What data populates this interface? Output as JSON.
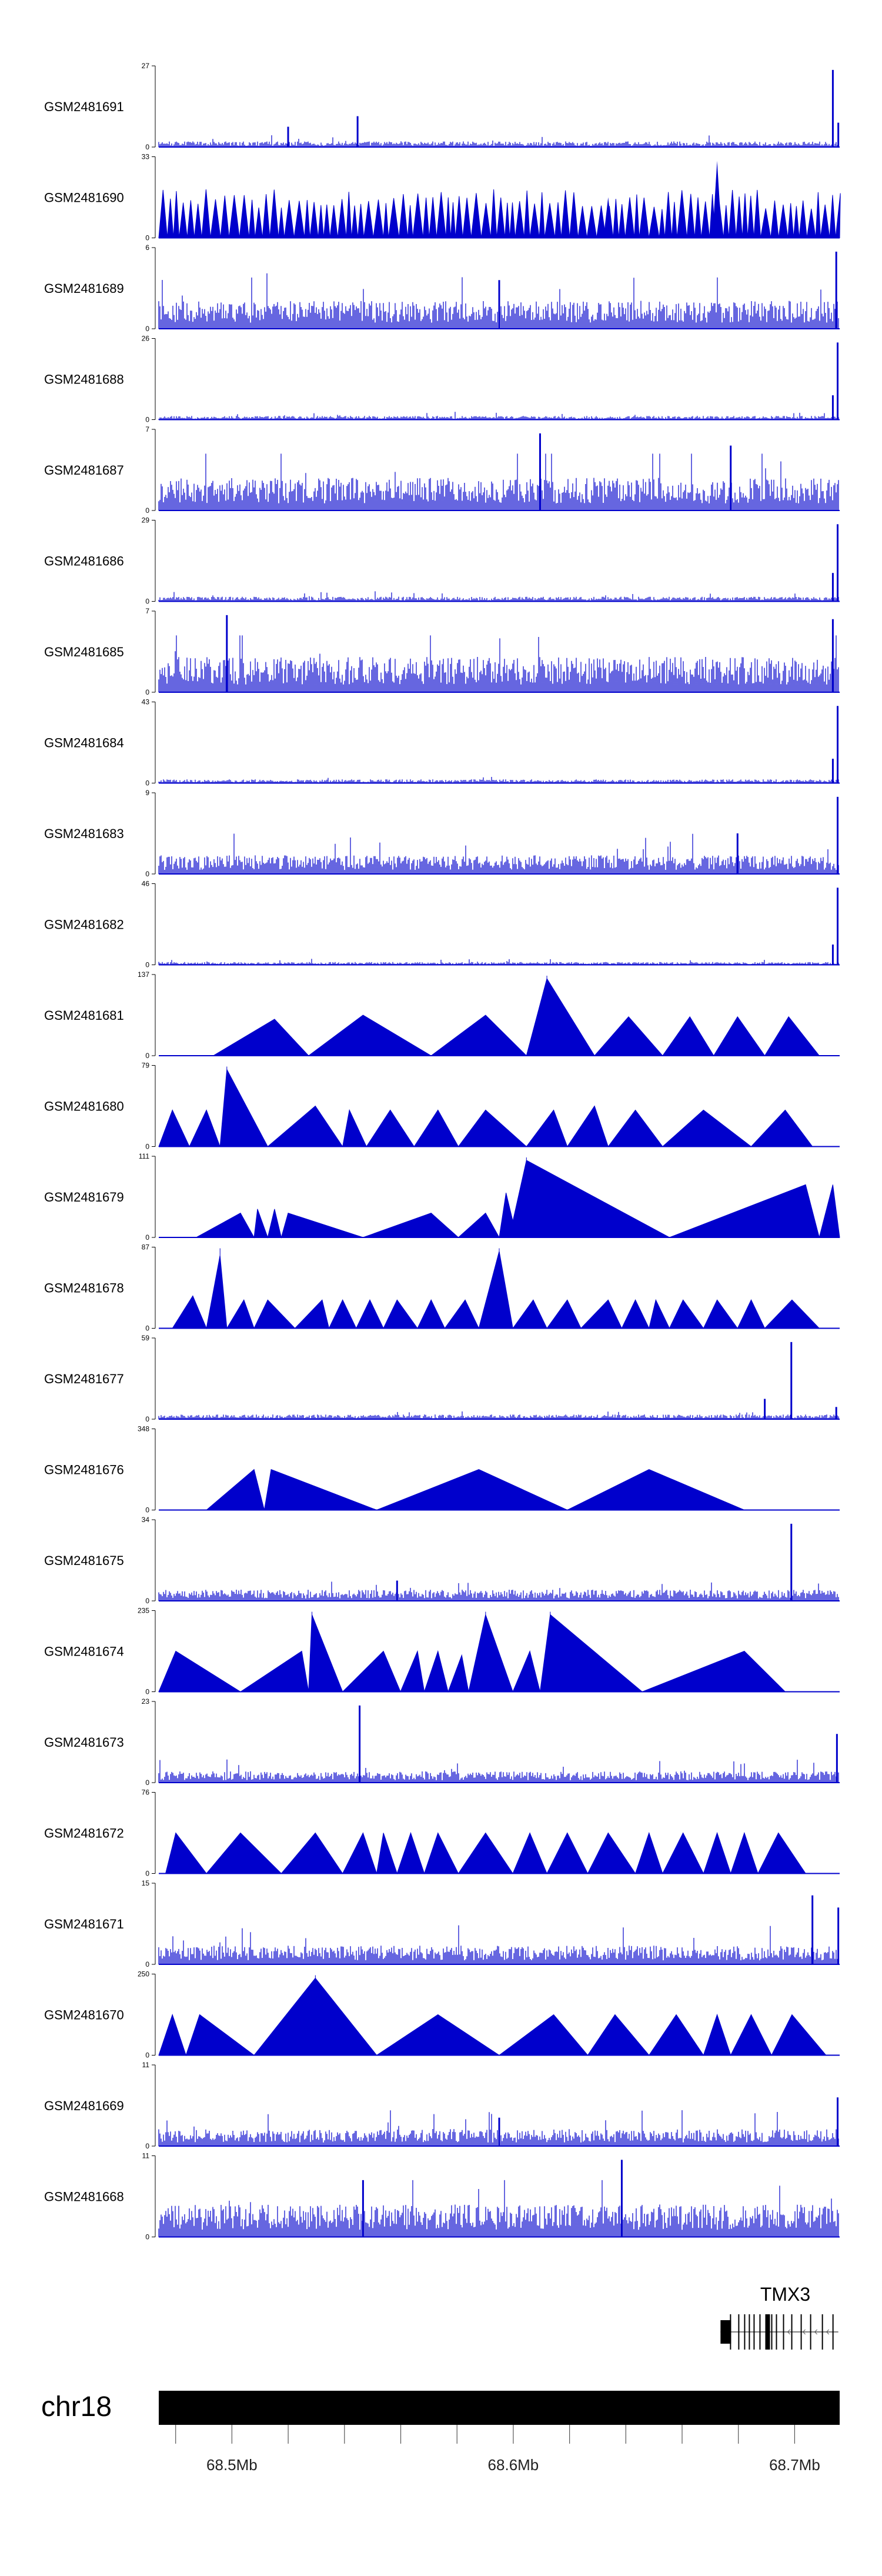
{
  "chart_data": {
    "type": "area",
    "data_color": "#0000cc",
    "x_range_mb": [
      68.474,
      68.716
    ],
    "tracks": [
      {
        "name": "GSM2481691",
        "ymax": "27",
        "ymin": "0",
        "style": "noise",
        "base": 0.06,
        "spikes": [
          [
            0.292,
            0.38
          ],
          [
            0.19,
            0.25
          ],
          [
            0.99,
            0.95
          ],
          [
            0.998,
            0.3
          ]
        ]
      },
      {
        "name": "GSM2481690",
        "ymax": "33",
        "ymin": "0",
        "style": "teeth",
        "base": 0.35,
        "spikes": [
          [
            0.82,
            0.95
          ],
          [
            0.66,
            0.5
          ]
        ]
      },
      {
        "name": "GSM2481689",
        "ymax": "6",
        "ymin": "0",
        "style": "noise",
        "base": 0.3,
        "spikes": [
          [
            0.995,
            0.95
          ],
          [
            0.5,
            0.6
          ]
        ]
      },
      {
        "name": "GSM2481688",
        "ymax": "26",
        "ymin": "0",
        "style": "noise",
        "base": 0.04,
        "spikes": [
          [
            0.997,
            0.95
          ],
          [
            0.99,
            0.3
          ]
        ]
      },
      {
        "name": "GSM2481687",
        "ymax": "7",
        "ymin": "0",
        "style": "noise",
        "base": 0.35,
        "spikes": [
          [
            0.56,
            0.95
          ],
          [
            0.84,
            0.8
          ]
        ]
      },
      {
        "name": "GSM2481686",
        "ymax": "29",
        "ymin": "0",
        "style": "noise",
        "base": 0.05,
        "spikes": [
          [
            0.997,
            0.95
          ],
          [
            0.99,
            0.35
          ]
        ]
      },
      {
        "name": "GSM2481685",
        "ymax": "7",
        "ymin": "0",
        "style": "noise",
        "base": 0.38,
        "spikes": [
          [
            0.1,
            0.95
          ],
          [
            0.99,
            0.9
          ]
        ]
      },
      {
        "name": "GSM2481684",
        "ymax": "43",
        "ymin": "0",
        "style": "noise",
        "base": 0.04,
        "spikes": [
          [
            0.997,
            0.95
          ],
          [
            0.99,
            0.3
          ]
        ]
      },
      {
        "name": "GSM2481683",
        "ymax": "9",
        "ymin": "0",
        "style": "noise",
        "base": 0.2,
        "spikes": [
          [
            0.997,
            0.95
          ],
          [
            0.85,
            0.5
          ]
        ]
      },
      {
        "name": "GSM2481682",
        "ymax": "46",
        "ymin": "0",
        "style": "noise",
        "base": 0.03,
        "spikes": [
          [
            0.997,
            0.95
          ],
          [
            0.99,
            0.25
          ]
        ]
      },
      {
        "name": "GSM2481681",
        "ymax": "137",
        "ymin": "0",
        "style": "triangles",
        "points": [
          [
            0.08,
            0
          ],
          [
            0.17,
            0.45
          ],
          [
            0.22,
            0
          ],
          [
            0.3,
            0.5
          ],
          [
            0.4,
            0
          ],
          [
            0.48,
            0.5
          ],
          [
            0.54,
            0
          ],
          [
            0.57,
            0.95
          ],
          [
            0.64,
            0
          ],
          [
            0.69,
            0.48
          ],
          [
            0.74,
            0
          ],
          [
            0.78,
            0.48
          ],
          [
            0.815,
            0
          ],
          [
            0.85,
            0.48
          ],
          [
            0.89,
            0
          ],
          [
            0.925,
            0.48
          ],
          [
            0.97,
            0
          ]
        ]
      },
      {
        "name": "GSM2481680",
        "ymax": "79",
        "ymin": "0",
        "style": "triangles",
        "points": [
          [
            0.0,
            0
          ],
          [
            0.02,
            0.45
          ],
          [
            0.045,
            0
          ],
          [
            0.07,
            0.45
          ],
          [
            0.09,
            0
          ],
          [
            0.1,
            0.95
          ],
          [
            0.16,
            0
          ],
          [
            0.23,
            0.5
          ],
          [
            0.27,
            0
          ],
          [
            0.28,
            0.45
          ],
          [
            0.305,
            0
          ],
          [
            0.34,
            0.45
          ],
          [
            0.375,
            0
          ],
          [
            0.41,
            0.45
          ],
          [
            0.44,
            0
          ],
          [
            0.48,
            0.45
          ],
          [
            0.54,
            0
          ],
          [
            0.58,
            0.45
          ],
          [
            0.6,
            0
          ],
          [
            0.64,
            0.5
          ],
          [
            0.66,
            0
          ],
          [
            0.7,
            0.45
          ],
          [
            0.74,
            0
          ],
          [
            0.8,
            0.45
          ],
          [
            0.87,
            0
          ],
          [
            0.92,
            0.45
          ],
          [
            0.96,
            0
          ]
        ]
      },
      {
        "name": "GSM2481679",
        "ymax": "111",
        "ymin": "0",
        "style": "triangles",
        "points": [
          [
            0.055,
            0
          ],
          [
            0.12,
            0.3
          ],
          [
            0.14,
            0
          ],
          [
            0.145,
            0.35
          ],
          [
            0.16,
            0
          ],
          [
            0.17,
            0.35
          ],
          [
            0.18,
            0
          ],
          [
            0.19,
            0.3
          ],
          [
            0.3,
            0
          ],
          [
            0.4,
            0.3
          ],
          [
            0.44,
            0
          ],
          [
            0.48,
            0.3
          ],
          [
            0.5,
            0
          ],
          [
            0.51,
            0.55
          ],
          [
            0.52,
            0.2
          ],
          [
            0.54,
            0.95
          ],
          [
            0.75,
            0
          ],
          [
            0.95,
            0.65
          ],
          [
            0.97,
            0
          ],
          [
            0.99,
            0.65
          ],
          [
            1.0,
            0
          ]
        ]
      },
      {
        "name": "GSM2481678",
        "ymax": "87",
        "ymin": "0",
        "style": "triangles",
        "points": [
          [
            0.02,
            0
          ],
          [
            0.05,
            0.4
          ],
          [
            0.07,
            0
          ],
          [
            0.09,
            0.9
          ],
          [
            0.1,
            0
          ],
          [
            0.125,
            0.35
          ],
          [
            0.14,
            0
          ],
          [
            0.16,
            0.35
          ],
          [
            0.2,
            0
          ],
          [
            0.24,
            0.35
          ],
          [
            0.25,
            0
          ],
          [
            0.27,
            0.35
          ],
          [
            0.29,
            0
          ],
          [
            0.31,
            0.35
          ],
          [
            0.33,
            0
          ],
          [
            0.35,
            0.35
          ],
          [
            0.38,
            0
          ],
          [
            0.4,
            0.35
          ],
          [
            0.42,
            0
          ],
          [
            0.45,
            0.35
          ],
          [
            0.47,
            0
          ],
          [
            0.5,
            0.95
          ],
          [
            0.52,
            0
          ],
          [
            0.55,
            0.35
          ],
          [
            0.57,
            0
          ],
          [
            0.6,
            0.35
          ],
          [
            0.62,
            0
          ],
          [
            0.66,
            0.35
          ],
          [
            0.68,
            0
          ],
          [
            0.7,
            0.35
          ],
          [
            0.72,
            0
          ],
          [
            0.73,
            0.35
          ],
          [
            0.75,
            0
          ],
          [
            0.77,
            0.35
          ],
          [
            0.8,
            0
          ],
          [
            0.82,
            0.35
          ],
          [
            0.85,
            0
          ],
          [
            0.87,
            0.35
          ],
          [
            0.89,
            0
          ],
          [
            0.93,
            0.35
          ],
          [
            0.97,
            0
          ]
        ]
      },
      {
        "name": "GSM2481677",
        "ymax": "59",
        "ymin": "0",
        "style": "noise",
        "base": 0.05,
        "spikes": [
          [
            0.929,
            0.95
          ],
          [
            0.89,
            0.25
          ],
          [
            0.995,
            0.15
          ]
        ]
      },
      {
        "name": "GSM2481676",
        "ymax": "348",
        "ymin": "0",
        "style": "triangles",
        "points": [
          [
            0.07,
            0
          ],
          [
            0.14,
            0.5
          ],
          [
            0.155,
            0
          ],
          [
            0.165,
            0.5
          ],
          [
            0.32,
            0
          ],
          [
            0.47,
            0.5
          ],
          [
            0.6,
            0
          ],
          [
            0.72,
            0.5
          ],
          [
            0.86,
            0
          ]
        ]
      },
      {
        "name": "GSM2481675",
        "ymax": "34",
        "ymin": "0",
        "style": "noise",
        "base": 0.12,
        "spikes": [
          [
            0.929,
            0.95
          ],
          [
            0.35,
            0.25
          ]
        ]
      },
      {
        "name": "GSM2481674",
        "ymax": "235",
        "ymin": "0",
        "style": "triangles",
        "points": [
          [
            0.0,
            0
          ],
          [
            0.025,
            0.5
          ],
          [
            0.12,
            0
          ],
          [
            0.21,
            0.5
          ],
          [
            0.22,
            0
          ],
          [
            0.225,
            0.95
          ],
          [
            0.27,
            0
          ],
          [
            0.33,
            0.5
          ],
          [
            0.355,
            0
          ],
          [
            0.38,
            0.5
          ],
          [
            0.39,
            0
          ],
          [
            0.41,
            0.5
          ],
          [
            0.425,
            0
          ],
          [
            0.445,
            0.45
          ],
          [
            0.455,
            0
          ],
          [
            0.48,
            0.95
          ],
          [
            0.52,
            0
          ],
          [
            0.545,
            0.5
          ],
          [
            0.56,
            0
          ],
          [
            0.575,
            0.95
          ],
          [
            0.71,
            0
          ],
          [
            0.86,
            0.5
          ],
          [
            0.92,
            0
          ]
        ]
      },
      {
        "name": "GSM2481673",
        "ymax": "23",
        "ymin": "0",
        "style": "noise",
        "base": 0.12,
        "spikes": [
          [
            0.295,
            0.95
          ],
          [
            0.996,
            0.6
          ]
        ]
      },
      {
        "name": "GSM2481672",
        "ymax": "76",
        "ymin": "0",
        "style": "triangles",
        "points": [
          [
            0.01,
            0
          ],
          [
            0.025,
            0.5
          ],
          [
            0.07,
            0
          ],
          [
            0.12,
            0.5
          ],
          [
            0.18,
            0
          ],
          [
            0.23,
            0.5
          ],
          [
            0.27,
            0
          ],
          [
            0.3,
            0.5
          ],
          [
            0.32,
            0
          ],
          [
            0.33,
            0.5
          ],
          [
            0.35,
            0
          ],
          [
            0.37,
            0.5
          ],
          [
            0.39,
            0
          ],
          [
            0.41,
            0.5
          ],
          [
            0.44,
            0
          ],
          [
            0.48,
            0.5
          ],
          [
            0.52,
            0
          ],
          [
            0.545,
            0.5
          ],
          [
            0.57,
            0
          ],
          [
            0.6,
            0.5
          ],
          [
            0.63,
            0
          ],
          [
            0.66,
            0.5
          ],
          [
            0.7,
            0
          ],
          [
            0.72,
            0.5
          ],
          [
            0.74,
            0
          ],
          [
            0.77,
            0.5
          ],
          [
            0.8,
            0
          ],
          [
            0.82,
            0.5
          ],
          [
            0.84,
            0
          ],
          [
            0.86,
            0.5
          ],
          [
            0.88,
            0
          ],
          [
            0.91,
            0.5
          ],
          [
            0.95,
            0
          ]
        ]
      },
      {
        "name": "GSM2481671",
        "ymax": "15",
        "ymin": "0",
        "style": "noise",
        "base": 0.2,
        "spikes": [
          [
            0.96,
            0.85
          ],
          [
            0.998,
            0.7
          ]
        ]
      },
      {
        "name": "GSM2481670",
        "ymax": "250",
        "ymin": "0",
        "style": "triangles",
        "points": [
          [
            0.0,
            0
          ],
          [
            0.02,
            0.5
          ],
          [
            0.04,
            0
          ],
          [
            0.06,
            0.5
          ],
          [
            0.14,
            0
          ],
          [
            0.23,
            0.95
          ],
          [
            0.32,
            0
          ],
          [
            0.41,
            0.5
          ],
          [
            0.5,
            0
          ],
          [
            0.58,
            0.5
          ],
          [
            0.63,
            0
          ],
          [
            0.67,
            0.5
          ],
          [
            0.72,
            0
          ],
          [
            0.76,
            0.5
          ],
          [
            0.8,
            0
          ],
          [
            0.82,
            0.5
          ],
          [
            0.84,
            0
          ],
          [
            0.87,
            0.5
          ],
          [
            0.9,
            0
          ],
          [
            0.93,
            0.5
          ],
          [
            0.98,
            0
          ]
        ]
      },
      {
        "name": "GSM2481669",
        "ymax": "11",
        "ymin": "0",
        "style": "noise",
        "base": 0.18,
        "spikes": [
          [
            0.997,
            0.6
          ],
          [
            0.5,
            0.35
          ]
        ]
      },
      {
        "name": "GSM2481668",
        "ymax": "11",
        "ymin": "0",
        "style": "noise",
        "base": 0.35,
        "spikes": [
          [
            0.68,
            0.95
          ],
          [
            0.3,
            0.7
          ]
        ]
      }
    ],
    "gene_track": {
      "label": "TMX3",
      "start_frac": 0.825,
      "end_frac": 0.998
    },
    "chromosome": {
      "label": "chr18",
      "ticks": [
        {
          "label": "68.5Mb",
          "value": 68.5
        },
        {
          "label": "68.6Mb",
          "value": 68.6
        },
        {
          "label": "68.7Mb",
          "value": 68.7
        }
      ],
      "minor_tick_values": [
        68.48,
        68.5,
        68.52,
        68.54,
        68.56,
        68.58,
        68.6,
        68.62,
        68.64,
        68.66,
        68.68,
        68.7
      ]
    }
  }
}
